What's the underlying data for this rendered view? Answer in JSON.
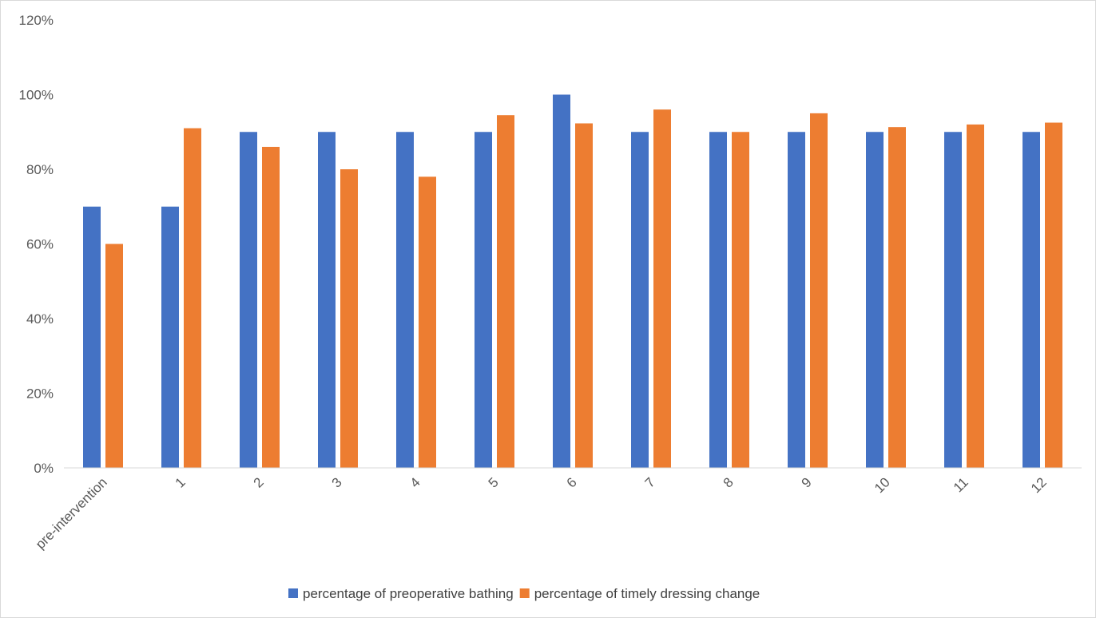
{
  "chart_data": {
    "type": "bar",
    "title": "",
    "xlabel": "",
    "ylabel": "",
    "categories": [
      "pre-intervention",
      "1",
      "2",
      "3",
      "4",
      "5",
      "6",
      "7",
      "8",
      "9",
      "10",
      "11",
      "12"
    ],
    "series": [
      {
        "name": "percentage of preoperative bathing",
        "color": "#4472C4",
        "values": [
          70,
          70,
          90,
          90,
          90,
          90,
          100,
          90,
          90,
          90,
          90,
          90,
          90
        ]
      },
      {
        "name": "percentage of timely dressing change",
        "color": "#ED7D31",
        "values": [
          60,
          91,
          86,
          80,
          78,
          94.5,
          92.3,
          96,
          90,
          95,
          91.3,
          92,
          92.5
        ]
      }
    ],
    "ylim": [
      0,
      120
    ],
    "yticks": [
      "0%",
      "20%",
      "40%",
      "60%",
      "80%",
      "100%",
      "120%"
    ],
    "ytick_values": [
      0,
      20,
      40,
      60,
      80,
      100,
      120
    ],
    "grid": false,
    "legend_position": "bottom",
    "x_label_rotation": "rotated-45"
  }
}
